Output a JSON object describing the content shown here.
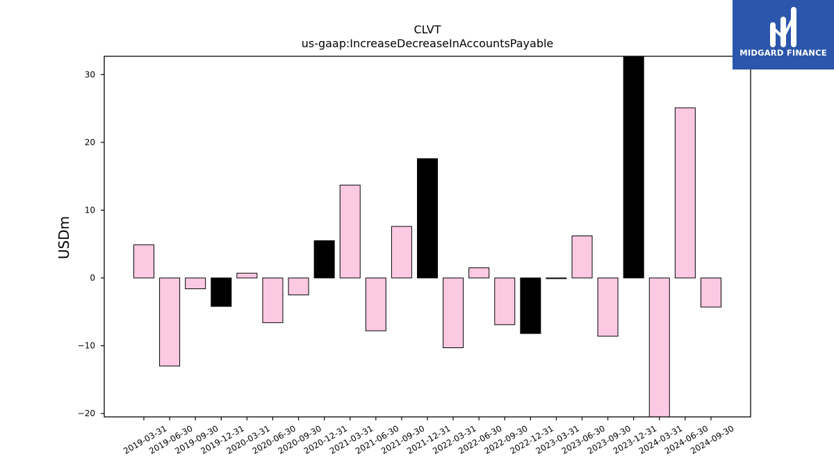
{
  "brand": {
    "name": "MIDGARD FINANCE",
    "bg_color": "#2b56ab",
    "icon": "midgard-logo-icon"
  },
  "chart_data": {
    "type": "bar",
    "title": "CLVT",
    "subtitle": "us-gaap:IncreaseDecreaseInAccountsPayable",
    "xlabel": "",
    "ylabel": "USDm",
    "ylim": [
      -20.5,
      32.7
    ],
    "yticks": [
      -20,
      -10,
      0,
      10,
      20,
      30
    ],
    "grid": false,
    "colors": {
      "regular": "#fcc9e3",
      "year_end": "#000000",
      "edge": "#000000"
    },
    "categories": [
      "2019-03-31",
      "2019-06-30",
      "2019-09-30",
      "2019-12-31",
      "2020-03-31",
      "2020-06-30",
      "2020-09-30",
      "2020-12-31",
      "2021-03-31",
      "2021-06-30",
      "2021-09-30",
      "2021-12-31",
      "2022-03-31",
      "2022-06-30",
      "2022-09-30",
      "2022-12-31",
      "2023-03-31",
      "2023-06-30",
      "2023-09-30",
      "2023-12-31",
      "2024-03-31",
      "2024-06-30",
      "2024-09-30"
    ],
    "values": [
      4.9,
      -13.0,
      -1.6,
      -4.2,
      0.7,
      -6.6,
      -2.5,
      5.5,
      13.7,
      -7.8,
      7.6,
      17.6,
      -10.3,
      1.5,
      -6.9,
      -8.2,
      -0.1,
      6.2,
      -8.6,
      32.7,
      -20.5,
      25.1,
      -4.3
    ],
    "year_end": [
      false,
      false,
      false,
      true,
      false,
      false,
      false,
      true,
      false,
      false,
      false,
      true,
      false,
      false,
      false,
      true,
      false,
      false,
      false,
      true,
      false,
      false,
      false
    ]
  }
}
